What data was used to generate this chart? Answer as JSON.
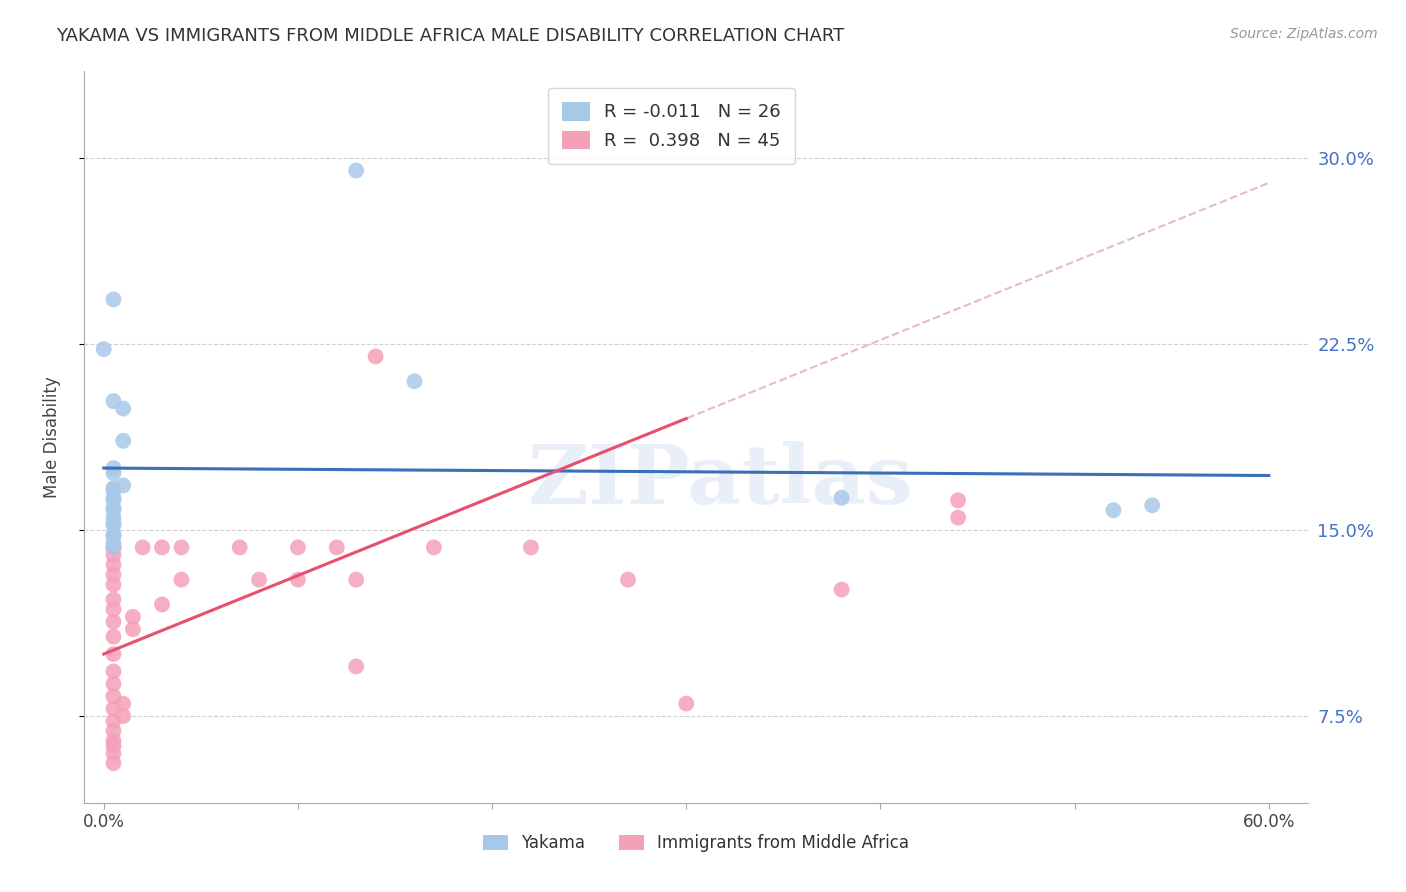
{
  "title": "YAKAMA VS IMMIGRANTS FROM MIDDLE AFRICA MALE DISABILITY CORRELATION CHART",
  "source": "Source: ZipAtlas.com",
  "ylabel": "Male Disability",
  "x_ticks": [
    0.0,
    0.1,
    0.2,
    0.3,
    0.4,
    0.5,
    0.6
  ],
  "x_tick_labels": [
    "0.0%",
    "",
    "",
    "",
    "",
    "",
    "60.0%"
  ],
  "y_ticks": [
    0.075,
    0.15,
    0.225,
    0.3
  ],
  "y_tick_labels": [
    "7.5%",
    "15.0%",
    "22.5%",
    "30.0%"
  ],
  "xlim": [
    -0.01,
    0.62
  ],
  "ylim": [
    0.04,
    0.335
  ],
  "legend_r_yakama": "R = -0.011",
  "legend_n_yakama": "N = 26",
  "legend_r_immigrants": "R =  0.398",
  "legend_n_immigrants": "N = 45",
  "yakama_color": "#a8c8e8",
  "immigrants_color": "#f4a0b8",
  "trend_yakama_color": "#3a6fba",
  "trend_immigrants_color": "#e85070",
  "trend_dashed_color": "#e0b0bc",
  "watermark": "ZIPatlas",
  "yakama_x": [
    0.005,
    0.13,
    0.0,
    0.005,
    0.01,
    0.01,
    0.01,
    0.005,
    0.005,
    0.005,
    0.005,
    0.005,
    0.005,
    0.005,
    0.005,
    0.005,
    0.005,
    0.005,
    0.005,
    0.005,
    0.16,
    0.38,
    0.005,
    0.005,
    0.52,
    0.54
  ],
  "yakama_y": [
    0.243,
    0.295,
    0.223,
    0.202,
    0.199,
    0.186,
    0.168,
    0.166,
    0.162,
    0.158,
    0.155,
    0.152,
    0.148,
    0.148,
    0.145,
    0.173,
    0.167,
    0.163,
    0.159,
    0.153,
    0.21,
    0.163,
    0.175,
    0.143,
    0.158,
    0.16
  ],
  "immigrants_x": [
    0.005,
    0.005,
    0.005,
    0.005,
    0.005,
    0.005,
    0.005,
    0.005,
    0.005,
    0.005,
    0.005,
    0.005,
    0.005,
    0.005,
    0.005,
    0.005,
    0.005,
    0.005,
    0.005,
    0.005,
    0.005,
    0.01,
    0.01,
    0.015,
    0.015,
    0.02,
    0.03,
    0.03,
    0.04,
    0.04,
    0.07,
    0.08,
    0.1,
    0.1,
    0.12,
    0.13,
    0.13,
    0.14,
    0.17,
    0.22,
    0.27,
    0.3,
    0.38,
    0.44,
    0.44
  ],
  "immigrants_y": [
    0.143,
    0.143,
    0.14,
    0.136,
    0.132,
    0.128,
    0.122,
    0.118,
    0.113,
    0.107,
    0.1,
    0.093,
    0.088,
    0.083,
    0.078,
    0.073,
    0.069,
    0.065,
    0.063,
    0.06,
    0.056,
    0.075,
    0.08,
    0.11,
    0.115,
    0.143,
    0.143,
    0.12,
    0.143,
    0.13,
    0.143,
    0.13,
    0.143,
    0.13,
    0.143,
    0.13,
    0.095,
    0.22,
    0.143,
    0.143,
    0.13,
    0.08,
    0.126,
    0.162,
    0.155
  ],
  "background_color": "#ffffff",
  "grid_color": "#cccccc",
  "trend_yakama_start_x": 0.0,
  "trend_yakama_end_x": 0.6,
  "trend_yakama_start_y": 0.175,
  "trend_yakama_end_y": 0.172,
  "trend_imm_solid_start_x": 0.0,
  "trend_imm_solid_end_x": 0.3,
  "trend_imm_solid_start_y": 0.1,
  "trend_imm_solid_end_y": 0.195,
  "trend_imm_dash_start_x": 0.0,
  "trend_imm_dash_end_x": 0.6,
  "trend_imm_dash_start_y": 0.1,
  "trend_imm_dash_end_y": 0.29
}
